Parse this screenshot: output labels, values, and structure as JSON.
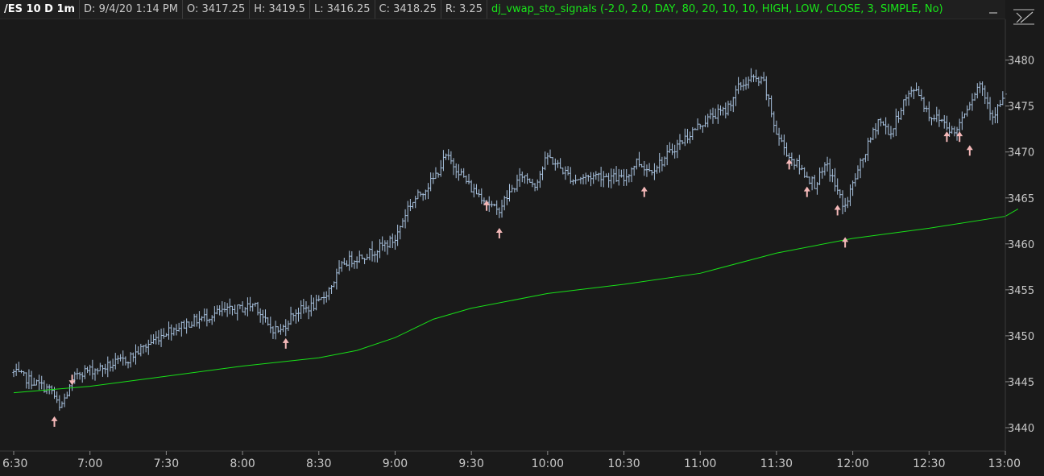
{
  "header": {
    "symbol": "/ES 10 D 1m",
    "date": "D: 9/4/20 1:14 PM",
    "open": "O: 3417.25",
    "high": "H: 3419.5",
    "low": "L: 3416.25",
    "close": "C: 3418.25",
    "range": "R: 3.25",
    "study": "dj_vwap_sto_signals (-2.0, 2.0, DAY, 80, 20, 10, 10, HIGH, LOW, CLOSE, 3, SIMPLE, No)"
  },
  "colors": {
    "background": "#1a1a1a",
    "bars": "#a9c3e0",
    "vwap": "#18e018",
    "signal_up": "#f4b8b8",
    "signal_down": "#f4b8b8"
  },
  "chart_data": {
    "type": "line",
    "title": "",
    "xlabel": "",
    "ylabel": "",
    "x_ticks": [
      "6:30",
      "7:00",
      "7:30",
      "8:00",
      "8:30",
      "9:00",
      "9:30",
      "10:00",
      "10:30",
      "11:00",
      "11:30",
      "12:00",
      "12:30",
      "13:00"
    ],
    "y_ticks": [
      3440,
      3445,
      3450,
      3455,
      3460,
      3465,
      3470,
      3475,
      3480
    ],
    "ylim": [
      3438,
      3483
    ],
    "xlim": [
      "6:30",
      "13:00"
    ],
    "grid": false,
    "price": {
      "name": "/ES",
      "style": "ohlc-bars",
      "x": [
        "6:30",
        "6:45",
        "6:48",
        "6:55",
        "7:05",
        "7:15",
        "7:30",
        "7:40",
        "7:50",
        "8:00",
        "8:05",
        "8:10",
        "8:15",
        "8:20",
        "8:30",
        "8:35",
        "8:40",
        "8:50",
        "9:00",
        "9:05",
        "9:15",
        "9:20",
        "9:25",
        "9:30",
        "9:35",
        "9:40",
        "9:45",
        "9:50",
        "9:55",
        "10:00",
        "10:10",
        "10:20",
        "10:30",
        "10:35",
        "10:40",
        "10:45",
        "10:50",
        "11:00",
        "11:05",
        "11:10",
        "11:15",
        "11:20",
        "11:25",
        "11:30",
        "11:35",
        "11:40",
        "11:45",
        "11:50",
        "11:55",
        "11:57",
        "12:00",
        "12:05",
        "12:10",
        "12:15",
        "12:20",
        "12:25",
        "12:30",
        "12:35",
        "12:40",
        "12:45",
        "12:50",
        "12:55",
        "13:00"
      ],
      "close": [
        3446,
        3444,
        3442,
        3446,
        3446.5,
        3447.5,
        3450.5,
        3451.5,
        3452.5,
        3453,
        3453.5,
        3451,
        3450.5,
        3452.5,
        3453.5,
        3455.5,
        3458,
        3459,
        3460.5,
        3464,
        3467,
        3469.5,
        3468,
        3466,
        3465,
        3463.5,
        3465.5,
        3467.5,
        3466.5,
        3469.5,
        3467,
        3467.5,
        3467,
        3469,
        3468,
        3469,
        3470.5,
        3473,
        3474,
        3474.5,
        3477,
        3478,
        3477.5,
        3472,
        3469.5,
        3468,
        3466.5,
        3468.5,
        3465,
        3464,
        3466.5,
        3470,
        3473.5,
        3472,
        3475.5,
        3477,
        3474,
        3473.5,
        3472,
        3475,
        3477.5,
        3474,
        3476
      ]
    },
    "series": [
      {
        "name": "",
        "style": "line",
        "x": [
          "6:30",
          "7:00",
          "7:30",
          "8:00",
          "8:30",
          "8:45",
          "9:00",
          "9:15",
          "9:30",
          "10:00",
          "10:30",
          "11:00",
          "11:30",
          "12:00",
          "12:30",
          "13:00",
          "13:05"
        ],
        "values": [
          3443.8,
          3444.5,
          3445.6,
          3446.7,
          3447.6,
          3448.4,
          3449.8,
          3451.8,
          3453,
          3454.6,
          3455.6,
          3456.8,
          3459,
          3460.6,
          3461.7,
          3463,
          3463.8
        ]
      }
    ],
    "signals_up": [
      {
        "x": "6:46",
        "y": 3441.5
      },
      {
        "x": "8:17",
        "y": 3450
      },
      {
        "x": "9:36",
        "y": 3465
      },
      {
        "x": "9:41",
        "y": 3462
      },
      {
        "x": "10:38",
        "y": 3466.5
      },
      {
        "x": "11:35",
        "y": 3469.5
      },
      {
        "x": "11:42",
        "y": 3466.5
      },
      {
        "x": "11:54",
        "y": 3464.5
      },
      {
        "x": "11:57",
        "y": 3461
      },
      {
        "x": "12:37",
        "y": 3472.5
      },
      {
        "x": "12:42",
        "y": 3472.5
      },
      {
        "x": "12:46",
        "y": 3471
      }
    ],
    "signals_down": [
      {
        "x": "6:53",
        "y": 3445.5
      }
    ]
  }
}
